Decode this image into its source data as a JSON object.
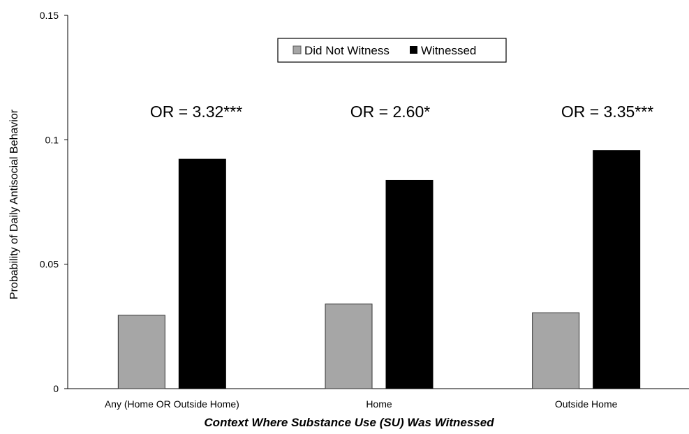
{
  "chart_data": {
    "type": "bar",
    "title": "",
    "xlabel": "Context Where Substance Use (SU) Was Witnessed",
    "ylabel": "Probability of Daily Antisocial Behavior",
    "ylim": [
      0,
      0.15
    ],
    "yticks": [
      {
        "value": 0,
        "label": "0"
      },
      {
        "value": 0.05,
        "label": "0.05"
      },
      {
        "value": 0.1,
        "label": "0.1"
      },
      {
        "value": 0.15,
        "label": "0.15"
      }
    ],
    "categories": [
      "Any (Home OR Outside Home)",
      "Home",
      "Outside Home"
    ],
    "series": [
      {
        "name": "Did Not Witness",
        "color": "#a6a6a6",
        "values": [
          0.0295,
          0.034,
          0.0305
        ]
      },
      {
        "name": "Witnessed",
        "color": "#000000",
        "values": [
          0.0922,
          0.0837,
          0.0957
        ]
      }
    ],
    "annotations": [
      "OR = 3.32***",
      "OR = 2.60*",
      "OR = 3.35***"
    ],
    "grid": false,
    "legend_position": "top-center"
  }
}
